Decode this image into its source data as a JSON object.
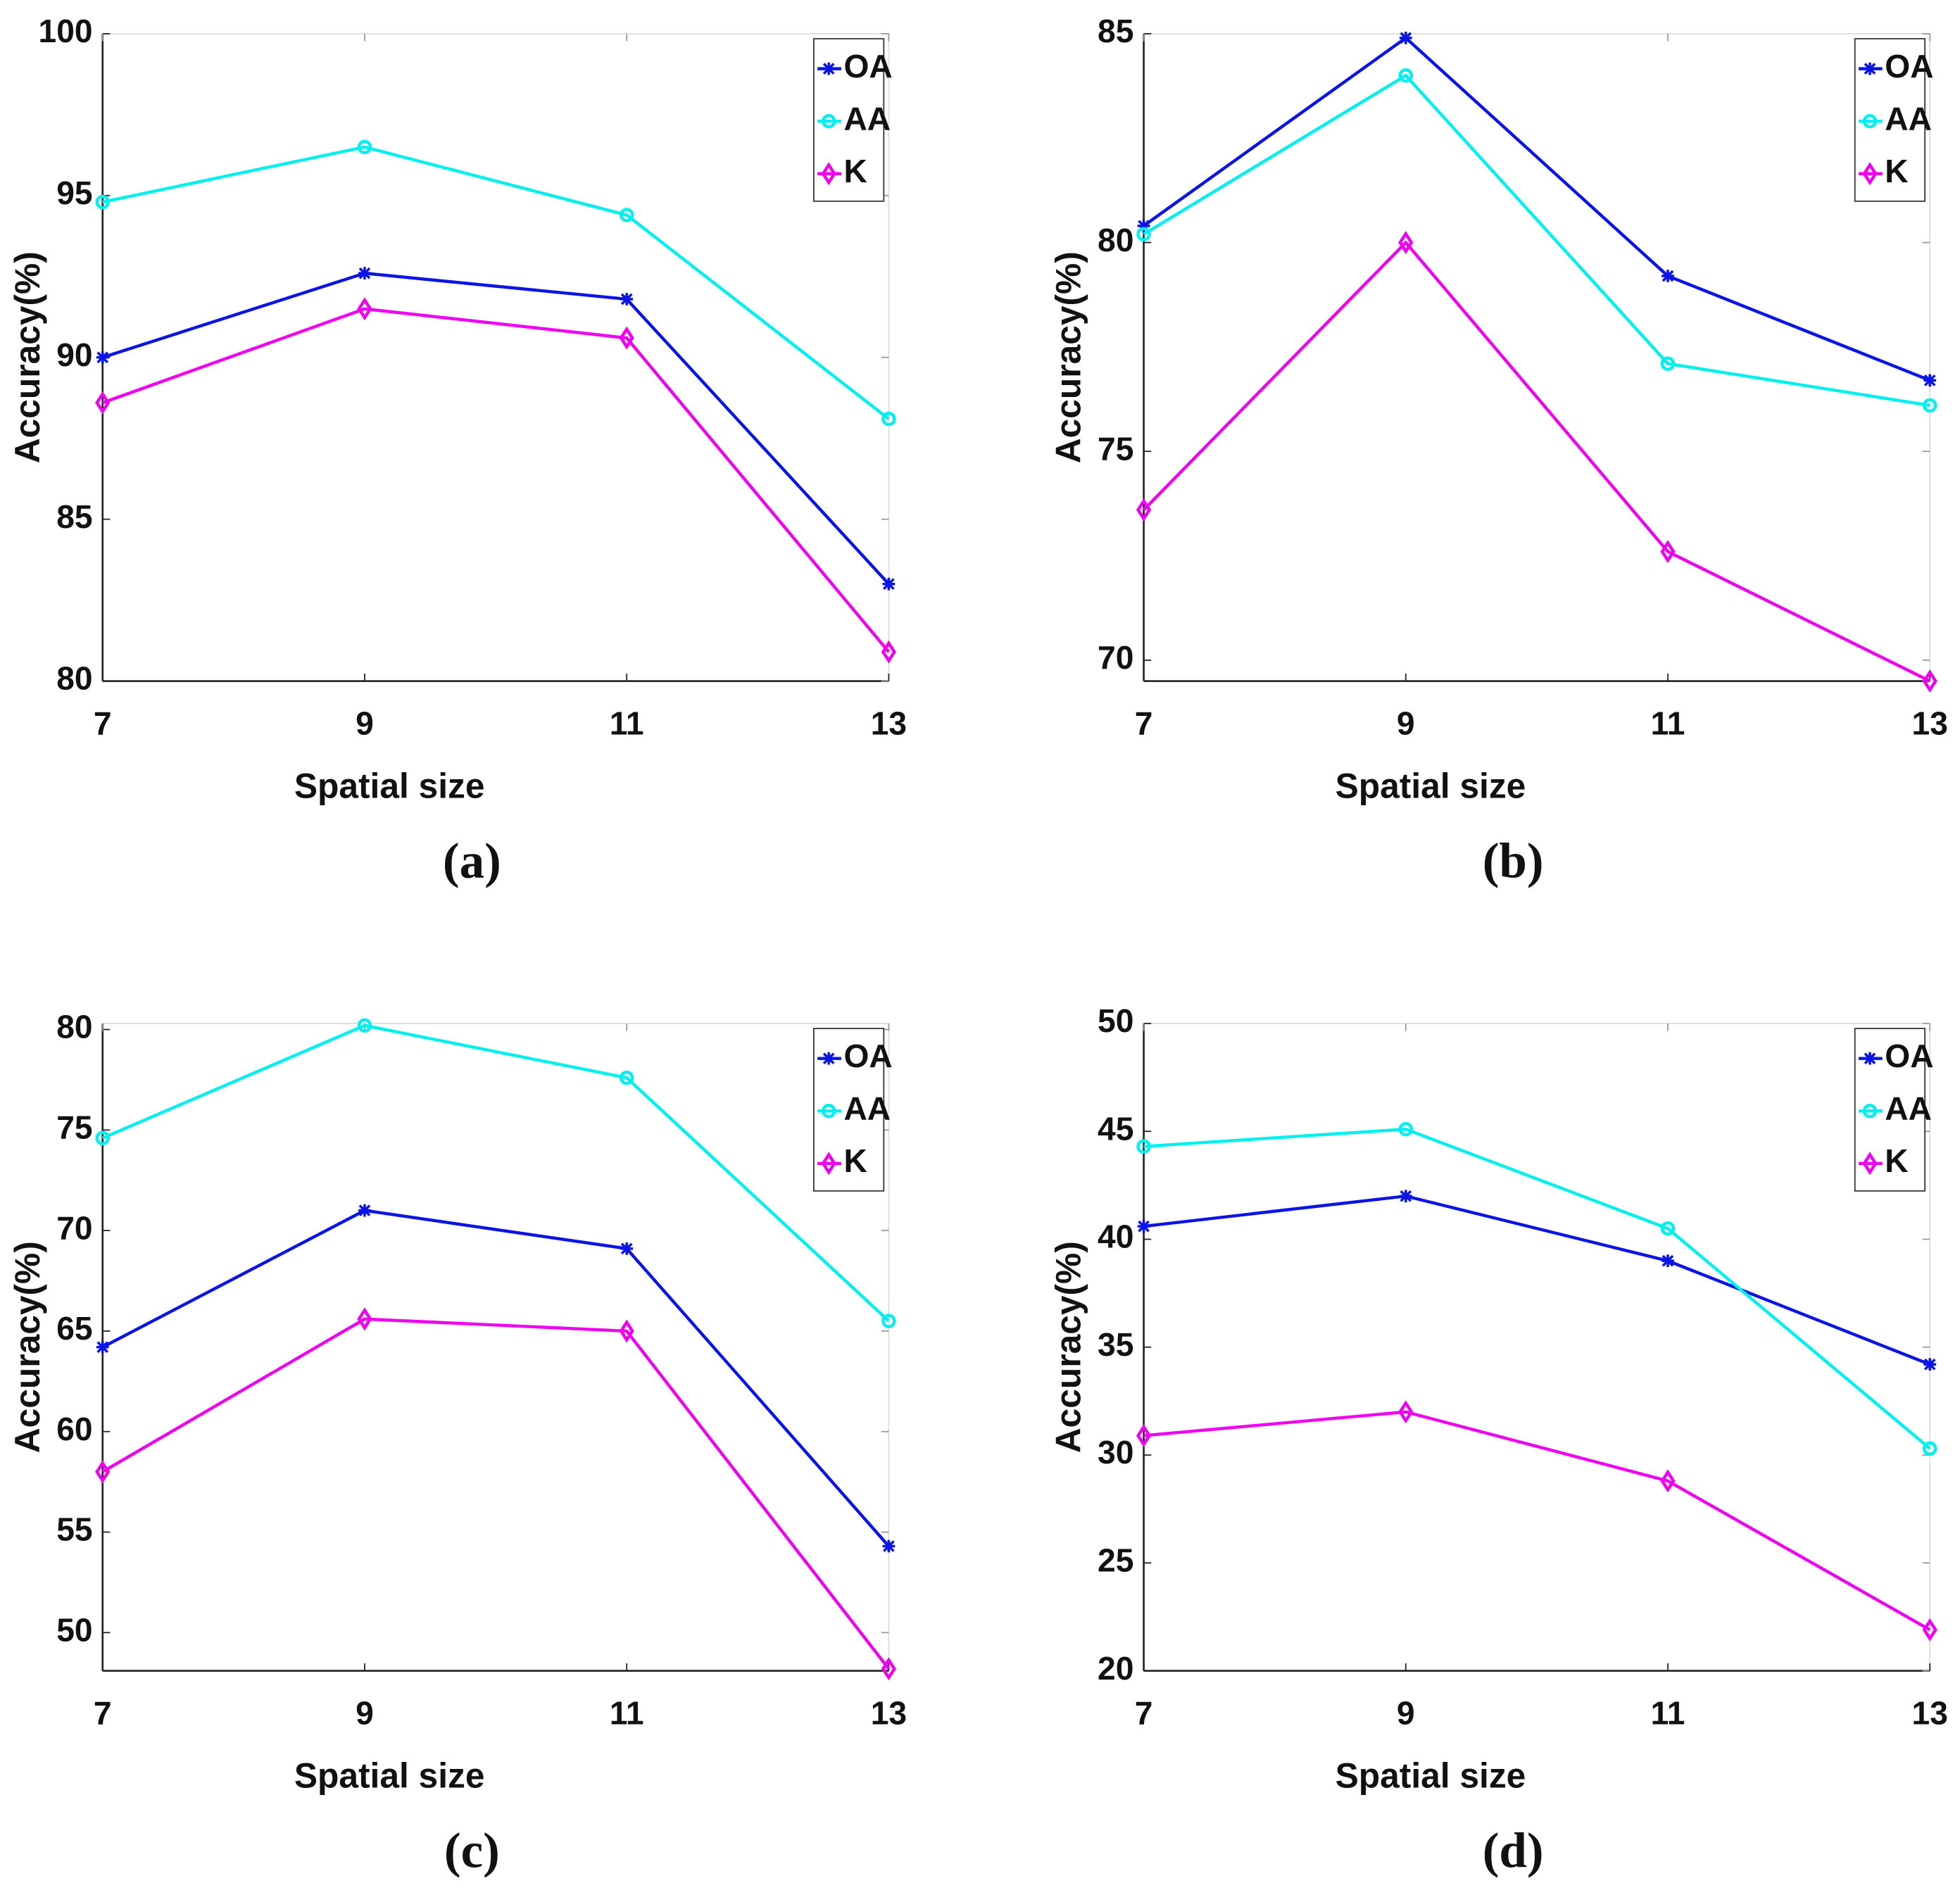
{
  "chart_data": [
    {
      "type": "line",
      "caption": "(a)",
      "x_label": "Spatial size",
      "y_label": "Accuracy(%)",
      "x": [
        7,
        9,
        11,
        13
      ],
      "xlim": [
        7,
        13
      ],
      "xticks": [
        7,
        9,
        11,
        13
      ],
      "ylim": [
        80,
        100
      ],
      "yticks": [
        80,
        85,
        90,
        95,
        100
      ],
      "legend": "upper right",
      "series": [
        {
          "name": "OA",
          "color": "#0a14e6",
          "marker": "star",
          "values": [
            90.0,
            92.6,
            91.8,
            83.0
          ]
        },
        {
          "name": "AA",
          "color": "#00f0f0",
          "marker": "circle",
          "values": [
            94.8,
            96.5,
            94.4,
            88.1
          ]
        },
        {
          "name": "K",
          "color": "#f000f0",
          "marker": "diamond",
          "values": [
            88.6,
            91.5,
            90.6,
            80.9
          ]
        }
      ]
    },
    {
      "type": "line",
      "caption": "(b)",
      "x_label": "Spatial size",
      "y_label": "Accuracy(%)",
      "x": [
        7,
        9,
        11,
        13
      ],
      "xlim": [
        7,
        13
      ],
      "xticks": [
        7,
        9,
        11,
        13
      ],
      "ylim": [
        69.5,
        85
      ],
      "yticks": [
        70,
        75,
        80,
        85
      ],
      "legend": "upper right",
      "series": [
        {
          "name": "OA",
          "color": "#0a14e6",
          "marker": "star",
          "values": [
            80.4,
            84.9,
            79.2,
            76.7
          ]
        },
        {
          "name": "AA",
          "color": "#00f0f0",
          "marker": "circle",
          "values": [
            80.2,
            84.0,
            77.1,
            76.1
          ]
        },
        {
          "name": "K",
          "color": "#f000f0",
          "marker": "diamond",
          "values": [
            73.6,
            80.0,
            72.6,
            69.5
          ]
        }
      ]
    },
    {
      "type": "line",
      "caption": "(c)",
      "x_label": "Spatial size",
      "y_label": "Accuracy(%)",
      "x": [
        7,
        9,
        11,
        13
      ],
      "xlim": [
        7,
        13
      ],
      "xticks": [
        7,
        9,
        11,
        13
      ],
      "ylim": [
        48.1,
        80.3
      ],
      "yticks": [
        50,
        55,
        60,
        65,
        70,
        75,
        80
      ],
      "legend": "upper right",
      "series": [
        {
          "name": "OA",
          "color": "#0a14e6",
          "marker": "star",
          "values": [
            64.2,
            71.0,
            69.1,
            54.3
          ]
        },
        {
          "name": "AA",
          "color": "#00f0f0",
          "marker": "circle",
          "values": [
            74.6,
            80.2,
            77.6,
            65.5
          ]
        },
        {
          "name": "K",
          "color": "#f000f0",
          "marker": "diamond",
          "values": [
            58.0,
            65.6,
            65.0,
            48.2
          ]
        }
      ]
    },
    {
      "type": "line",
      "caption": "(d)",
      "x_label": "Spatial size",
      "y_label": "Accuracy(%)",
      "x": [
        7,
        9,
        11,
        13
      ],
      "xlim": [
        7,
        13
      ],
      "xticks": [
        7,
        9,
        11,
        13
      ],
      "ylim": [
        20,
        50
      ],
      "yticks": [
        20,
        25,
        30,
        35,
        40,
        45,
        50
      ],
      "legend": "upper right",
      "series": [
        {
          "name": "OA",
          "color": "#0a14e6",
          "marker": "star",
          "values": [
            40.6,
            42.0,
            39.0,
            34.2
          ]
        },
        {
          "name": "AA",
          "color": "#00f0f0",
          "marker": "circle",
          "values": [
            44.3,
            45.1,
            40.5,
            30.3
          ]
        },
        {
          "name": "K",
          "color": "#f000f0",
          "marker": "diamond",
          "values": [
            30.9,
            32.0,
            28.8,
            21.9
          ]
        }
      ]
    }
  ]
}
